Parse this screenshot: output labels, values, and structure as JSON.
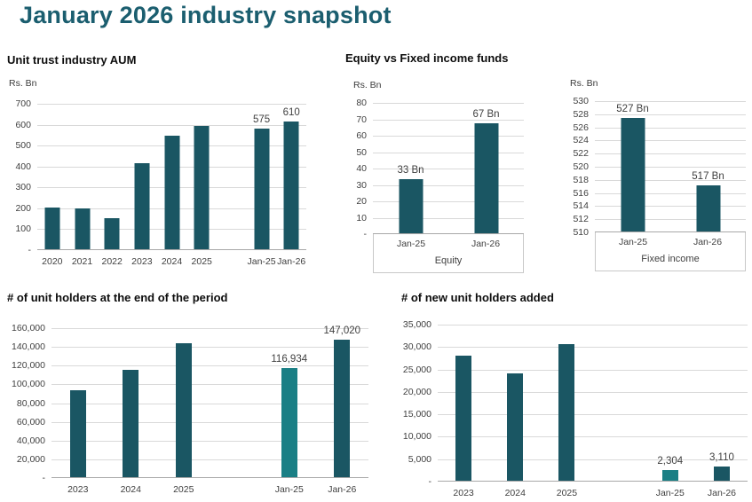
{
  "page": {
    "title": "January 2026 industry snapshot"
  },
  "colors": {
    "title": "#1b5e6f",
    "bar_dark": "#1a5663",
    "bar_light": "#1a7f85",
    "gridline": "#d9d9d9",
    "axis_line": "#a8a8a8",
    "text": "#3f3f3f"
  },
  "chart_data": [
    {
      "id": "aum",
      "type": "bar",
      "title": "Unit trust industry AUM",
      "units": "Rs. Bn",
      "ylim": [
        0,
        700
      ],
      "grid": true,
      "yticks": [
        {
          "v": 700,
          "label": "700"
        },
        {
          "v": 600,
          "label": "600"
        },
        {
          "v": 500,
          "label": "500"
        },
        {
          "v": 400,
          "label": "400"
        },
        {
          "v": 300,
          "label": "300"
        },
        {
          "v": 200,
          "label": "200"
        },
        {
          "v": 100,
          "label": "100"
        },
        {
          "v": 0,
          "label": "-"
        }
      ],
      "points": [
        {
          "label": "2020",
          "value": 200
        },
        {
          "label": "2021",
          "value": 197
        },
        {
          "label": "2022",
          "value": 150
        },
        {
          "label": "2023",
          "value": 410
        },
        {
          "label": "2024",
          "value": 545
        },
        {
          "label": "2025",
          "value": 590
        },
        {
          "gap": true
        },
        {
          "label": "Jan-25",
          "value": 575,
          "data_label": "575"
        },
        {
          "label": "Jan-26",
          "value": 610,
          "data_label": "610"
        }
      ]
    },
    {
      "id": "equity",
      "type": "bar",
      "title": "Equity vs Fixed income funds",
      "units": "Rs. Bn",
      "ylim": [
        0,
        80
      ],
      "grid": true,
      "group_label": "Equity",
      "yticks": [
        {
          "v": 80,
          "label": "80"
        },
        {
          "v": 70,
          "label": "70"
        },
        {
          "v": 60,
          "label": "60"
        },
        {
          "v": 50,
          "label": "50"
        },
        {
          "v": 40,
          "label": "40"
        },
        {
          "v": 30,
          "label": "30"
        },
        {
          "v": 20,
          "label": "20"
        },
        {
          "v": 10,
          "label": "10"
        },
        {
          "v": 0,
          "label": "-"
        }
      ],
      "points": [
        {
          "label": "Jan-25",
          "value": 33,
          "data_label": "33 Bn"
        },
        {
          "label": "Jan-26",
          "value": 67,
          "data_label": "67 Bn"
        }
      ]
    },
    {
      "id": "fixed_income",
      "type": "bar",
      "title": "",
      "units": "Rs. Bn",
      "ylim": [
        510,
        530
      ],
      "grid": true,
      "group_label": "Fixed income",
      "yticks": [
        {
          "v": 530,
          "label": "530"
        },
        {
          "v": 528,
          "label": "528"
        },
        {
          "v": 526,
          "label": "526"
        },
        {
          "v": 524,
          "label": "524"
        },
        {
          "v": 522,
          "label": "522"
        },
        {
          "v": 520,
          "label": "520"
        },
        {
          "v": 518,
          "label": "518"
        },
        {
          "v": 516,
          "label": "516"
        },
        {
          "v": 514,
          "label": "514"
        },
        {
          "v": 512,
          "label": "512"
        },
        {
          "v": 510,
          "label": "510"
        }
      ],
      "points": [
        {
          "label": "Jan-25",
          "value": 527.3,
          "data_label": "527 Bn"
        },
        {
          "label": "Jan-26",
          "value": 517,
          "data_label": "517 Bn"
        }
      ]
    },
    {
      "id": "holders",
      "type": "bar",
      "title": "# of unit holders at the end of the period",
      "units": "",
      "ylim": [
        0,
        160000
      ],
      "grid": true,
      "yticks": [
        {
          "v": 160000,
          "label": "160,000"
        },
        {
          "v": 140000,
          "label": "140,000"
        },
        {
          "v": 120000,
          "label": "120,000"
        },
        {
          "v": 100000,
          "label": "100,000"
        },
        {
          "v": 80000,
          "label": "80,000"
        },
        {
          "v": 60000,
          "label": "60,000"
        },
        {
          "v": 40000,
          "label": "40,000"
        },
        {
          "v": 20000,
          "label": "20,000"
        },
        {
          "v": 0,
          "label": "-"
        }
      ],
      "points": [
        {
          "label": "2023",
          "value": 92500
        },
        {
          "label": "2024",
          "value": 114500
        },
        {
          "label": "2025",
          "value": 143000
        },
        {
          "gap": true
        },
        {
          "label": "Jan-25",
          "value": 116934,
          "data_label": "116,934",
          "highlight": true
        },
        {
          "label": "Jan-26",
          "value": 147020,
          "data_label": "147,020"
        }
      ]
    },
    {
      "id": "new_holders",
      "type": "bar",
      "title": "# of new unit holders added",
      "units": "",
      "ylim": [
        0,
        35000
      ],
      "grid": true,
      "yticks": [
        {
          "v": 35000,
          "label": "35,000"
        },
        {
          "v": 30000,
          "label": "30,000"
        },
        {
          "v": 25000,
          "label": "25,000"
        },
        {
          "v": 20000,
          "label": "20,000"
        },
        {
          "v": 15000,
          "label": "15,000"
        },
        {
          "v": 10000,
          "label": "10,000"
        },
        {
          "v": 5000,
          "label": "5,000"
        },
        {
          "v": 0,
          "label": "-"
        }
      ],
      "points": [
        {
          "label": "2023",
          "value": 27800
        },
        {
          "label": "2024",
          "value": 24000
        },
        {
          "label": "2025",
          "value": 30500
        },
        {
          "gap": true
        },
        {
          "label": "Jan-25",
          "value": 2304,
          "data_label": "2,304",
          "highlight": true
        },
        {
          "label": "Jan-26",
          "value": 3110,
          "data_label": "3,110"
        }
      ]
    }
  ]
}
